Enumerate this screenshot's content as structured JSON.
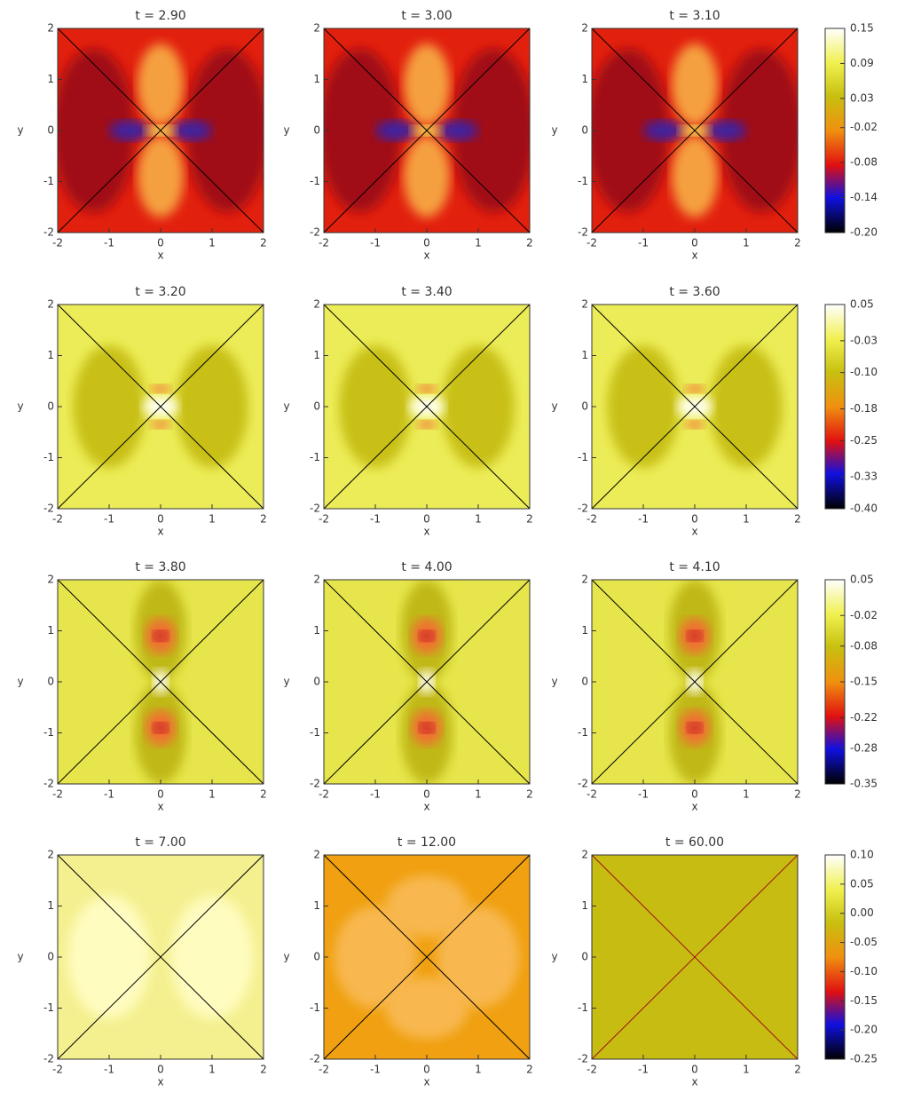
{
  "chart_data": {
    "type": "heatmap",
    "xlim": [
      -2,
      2
    ],
    "ylim": [
      -2,
      2
    ],
    "xticks": [
      -2,
      -1,
      0,
      1,
      2
    ],
    "yticks": [
      -2,
      -1,
      0,
      1,
      2
    ],
    "xlabel": "x",
    "ylabel": "y",
    "rows": [
      {
        "titles": [
          "t = 2.90",
          "t = 3.00",
          "t = 3.10"
        ],
        "clim": [
          -0.2,
          0.15
        ],
        "cticks": [
          0.15,
          0.09,
          0.03,
          -0.02,
          -0.08,
          -0.14,
          {
            "value": -0.2,
            "label": "-0.20"
          }
        ]
      },
      {
        "titles": [
          "t = 3.20",
          "t = 3.40",
          "t = 3.60"
        ],
        "clim": [
          -0.4,
          0.05
        ],
        "cticks": [
          0.05,
          -0.03,
          {
            "value": -0.1,
            "label": "-0.10"
          },
          -0.18,
          -0.25,
          -0.33,
          {
            "value": -0.4,
            "label": "-0.40"
          }
        ]
      },
      {
        "titles": [
          "t = 3.80",
          "t = 4.00",
          "t = 4.10"
        ],
        "clim": [
          -0.35,
          0.05
        ],
        "cticks": [
          0.05,
          -0.02,
          -0.08,
          -0.15,
          -0.22,
          -0.28,
          -0.35
        ]
      },
      {
        "titles": [
          "t = 7.00",
          "t = 12.00",
          "t = 60.00"
        ],
        "clim": [
          -0.25,
          0.1
        ],
        "cticks": [
          {
            "value": 0.1,
            "label": "0.10"
          },
          0.05,
          {
            "value": 0,
            "label": "0.00"
          },
          -0.05,
          {
            "value": -0.1,
            "label": "-0.10"
          },
          -0.15,
          {
            "value": -0.2,
            "label": "-0.20"
          },
          -0.25
        ]
      }
    ]
  }
}
